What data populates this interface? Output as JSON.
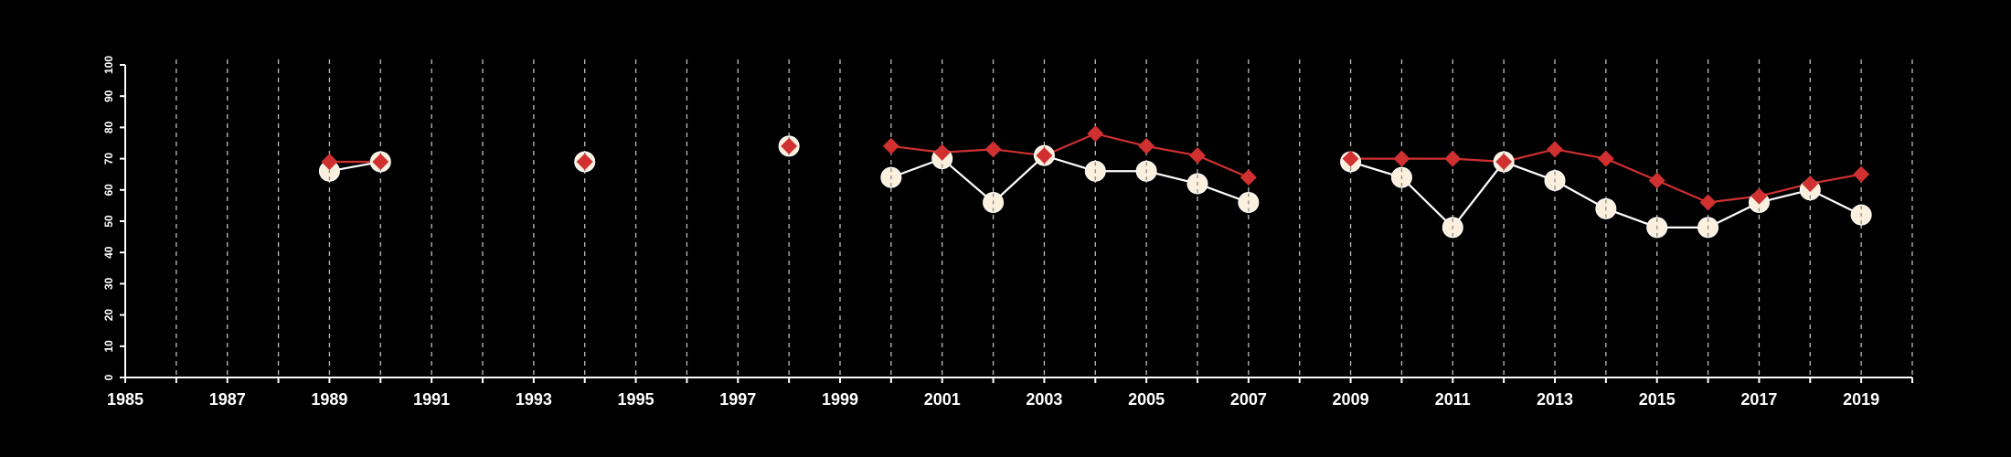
{
  "chart_data": {
    "type": "line",
    "title": "",
    "xlabel": "",
    "ylabel": "",
    "xlim": [
      1985,
      2020
    ],
    "ylim": [
      0,
      100
    ],
    "x_ticks": [
      1985,
      1987,
      1989,
      1991,
      1993,
      1995,
      1997,
      1999,
      2001,
      2003,
      2005,
      2007,
      2009,
      2011,
      2013,
      2015,
      2017,
      2019
    ],
    "y_ticks": [
      0,
      10,
      20,
      30,
      40,
      50,
      60,
      70,
      80,
      90,
      100
    ],
    "vertical_gridlines": "dashed, every year",
    "legend": "none",
    "background_color": "#000000",
    "series": [
      {
        "marker": "circle",
        "color": "#fbefdd",
        "line_color": "#ffffff",
        "points": [
          [
            1989,
            66
          ],
          [
            1990,
            69
          ],
          [
            1994,
            69
          ],
          [
            1998,
            74
          ],
          [
            2000,
            64
          ],
          [
            2001,
            70
          ],
          [
            2002,
            56
          ],
          [
            2003,
            71
          ],
          [
            2004,
            66
          ],
          [
            2005,
            66
          ],
          [
            2006,
            62
          ],
          [
            2007,
            56
          ],
          [
            2009,
            69
          ],
          [
            2010,
            64
          ],
          [
            2011,
            48
          ],
          [
            2012,
            69
          ],
          [
            2013,
            63
          ],
          [
            2014,
            54
          ],
          [
            2015,
            48
          ],
          [
            2016,
            48
          ],
          [
            2017,
            56
          ],
          [
            2018,
            60
          ],
          [
            2019,
            52
          ]
        ]
      },
      {
        "marker": "diamond",
        "color": "#d03030",
        "line_color": "#d03030",
        "points": [
          [
            1989,
            69
          ],
          [
            1990,
            69
          ],
          [
            1994,
            69
          ],
          [
            1998,
            74
          ],
          [
            2000,
            74
          ],
          [
            2001,
            72
          ],
          [
            2002,
            73
          ],
          [
            2003,
            71
          ],
          [
            2004,
            78
          ],
          [
            2005,
            74
          ],
          [
            2006,
            71
          ],
          [
            2007,
            64
          ],
          [
            2009,
            70
          ],
          [
            2010,
            70
          ],
          [
            2011,
            70
          ],
          [
            2012,
            69
          ],
          [
            2013,
            73
          ],
          [
            2014,
            70
          ],
          [
            2015,
            63
          ],
          [
            2016,
            56
          ],
          [
            2017,
            58
          ],
          [
            2018,
            62
          ],
          [
            2019,
            65
          ]
        ]
      }
    ]
  }
}
